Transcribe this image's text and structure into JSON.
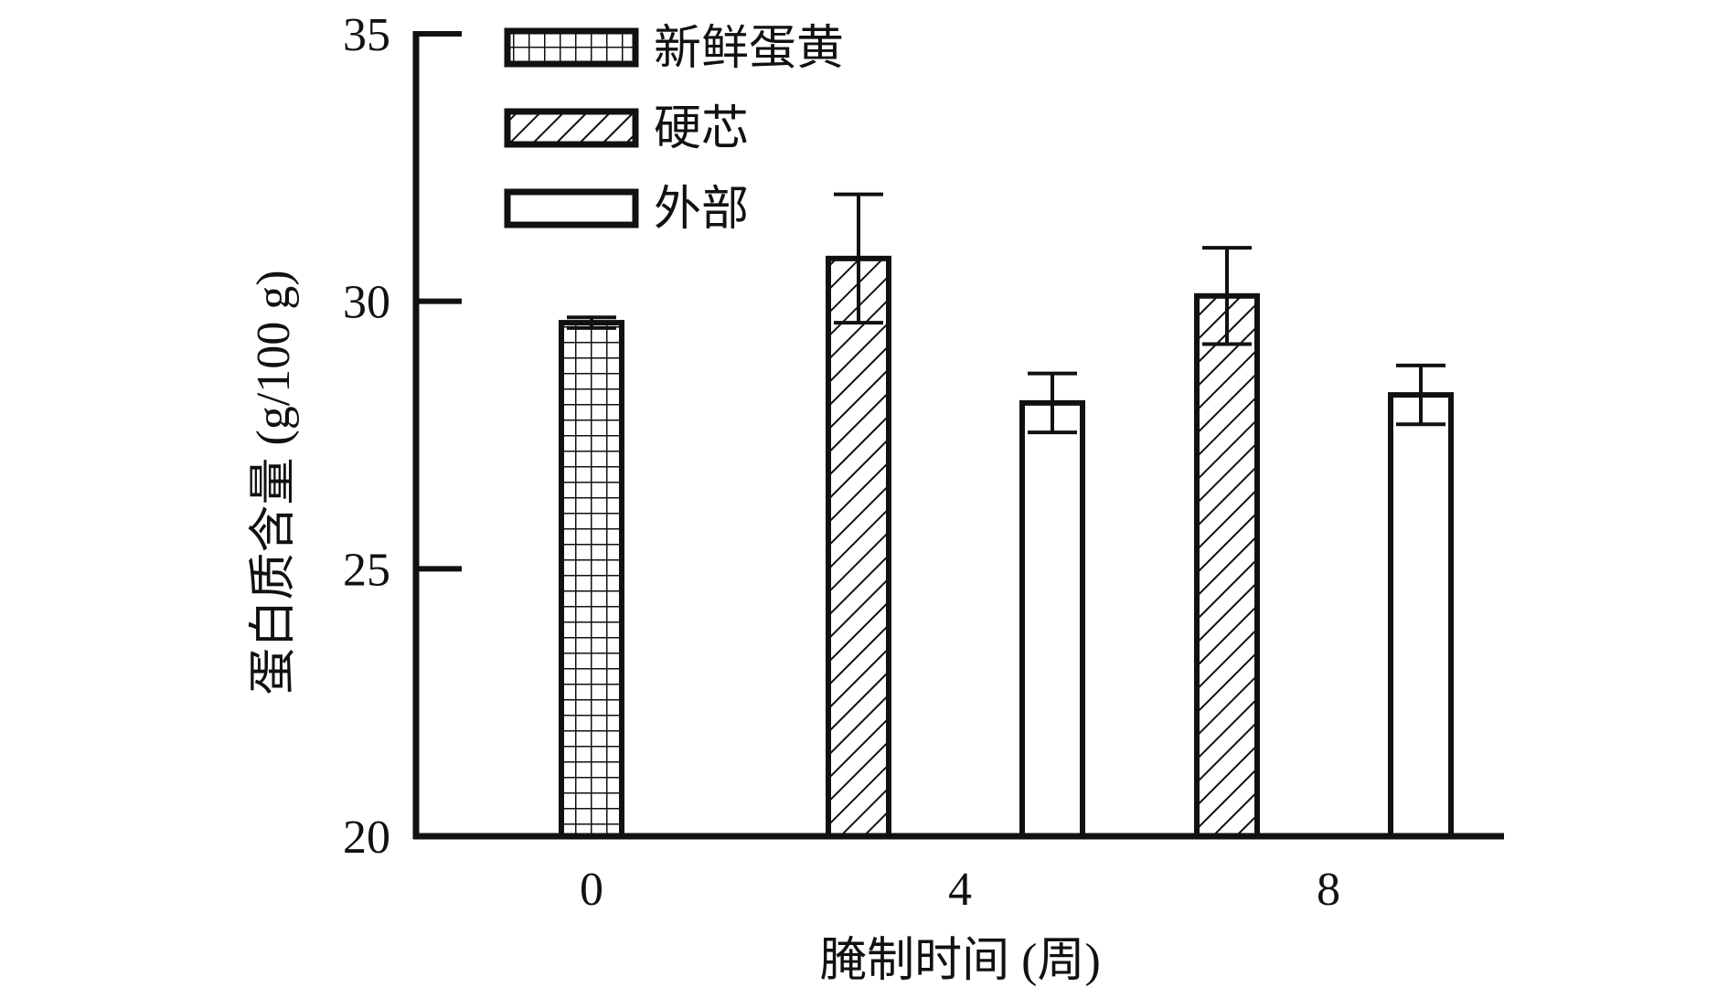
{
  "chart_data": {
    "type": "bar",
    "title": "",
    "xlabel": "腌制时间 (周)",
    "ylabel": "蛋白质含量 (g/100 g)",
    "ylim": [
      20,
      35
    ],
    "yticks": [
      20,
      25,
      30,
      35
    ],
    "categories": [
      "0",
      "4",
      "8"
    ],
    "legend_position": "top-left",
    "grid": false,
    "series": [
      {
        "name": "新鲜蛋黄",
        "pattern": "grid",
        "values": [
          29.6,
          null,
          null
        ],
        "errors": [
          0.1,
          null,
          null
        ]
      },
      {
        "name": "硬芯",
        "pattern": "hatch",
        "values": [
          null,
          30.8,
          30.1
        ],
        "errors": [
          null,
          1.2,
          0.9
        ]
      },
      {
        "name": "外部",
        "pattern": "none",
        "values": [
          null,
          28.1,
          28.25
        ],
        "errors": [
          null,
          0.55,
          0.55
        ]
      }
    ]
  }
}
